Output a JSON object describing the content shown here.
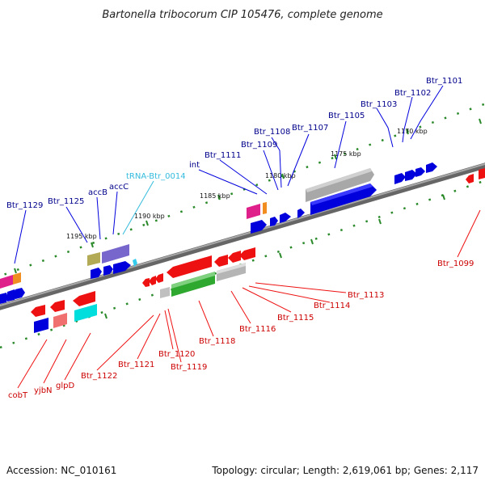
{
  "title": "Bartonella tribocorum CIP 105476, complete genome",
  "footer": {
    "accession": "Accession: NC_010161",
    "summary": "Topology: circular; Length: 2,619,061 bp; Genes: 2,117"
  },
  "colors": {
    "backbone": "#7f7f7f",
    "forward_label": "#00008b",
    "reverse_label": "#cc0000",
    "trna_label": "#33bbdd",
    "dotted_track": "#2a8a2a"
  },
  "kbp_ticks": [
    "1195 kbp",
    "1190 kbp",
    "1185 kbp",
    "1180 kbp",
    "1175 kbp",
    "1170 kbp"
  ],
  "forward_labels": [
    "Btr_1129",
    "Btr_1125",
    "accB",
    "accC",
    "tRNA-Btr_0014",
    "int",
    "Btr_1111",
    "Btr_1109",
    "Btr_1108",
    "Btr_1107",
    "Btr_1105",
    "Btr_1103",
    "Btr_1102",
    "Btr_1101"
  ],
  "reverse_labels": [
    "cobT",
    "yjbN",
    "glpD",
    "Btr_1122",
    "Btr_1121",
    "Btr_1120",
    "Btr_1119",
    "Btr_1118",
    "Btr_1116",
    "Btr_1115",
    "Btr_1114",
    "Btr_1113",
    "Btr_1099"
  ]
}
